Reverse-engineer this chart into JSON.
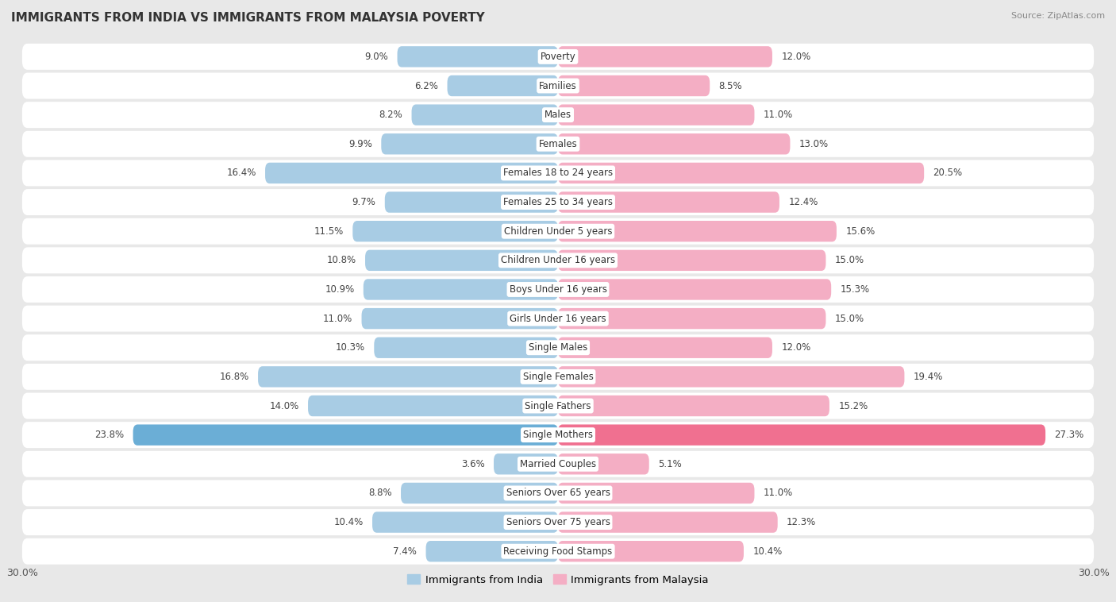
{
  "title": "IMMIGRANTS FROM INDIA VS IMMIGRANTS FROM MALAYSIA POVERTY",
  "source": "Source: ZipAtlas.com",
  "categories": [
    "Poverty",
    "Families",
    "Males",
    "Females",
    "Females 18 to 24 years",
    "Females 25 to 34 years",
    "Children Under 5 years",
    "Children Under 16 years",
    "Boys Under 16 years",
    "Girls Under 16 years",
    "Single Males",
    "Single Females",
    "Single Fathers",
    "Single Mothers",
    "Married Couples",
    "Seniors Over 65 years",
    "Seniors Over 75 years",
    "Receiving Food Stamps"
  ],
  "india_values": [
    9.0,
    6.2,
    8.2,
    9.9,
    16.4,
    9.7,
    11.5,
    10.8,
    10.9,
    11.0,
    10.3,
    16.8,
    14.0,
    23.8,
    3.6,
    8.8,
    10.4,
    7.4
  ],
  "malaysia_values": [
    12.0,
    8.5,
    11.0,
    13.0,
    20.5,
    12.4,
    15.6,
    15.0,
    15.3,
    15.0,
    12.0,
    19.4,
    15.2,
    27.3,
    5.1,
    11.0,
    12.3,
    10.4
  ],
  "india_color": "#a8cce4",
  "malaysia_color": "#f4aec4",
  "india_highlight_color": "#6baed6",
  "malaysia_highlight_color": "#f07090",
  "row_bg_color": "#ffffff",
  "background_color": "#e8e8e8",
  "axis_limit": 30.0,
  "bar_height": 0.72,
  "label_fontsize": 8.5,
  "title_fontsize": 11,
  "legend_fontsize": 9.5
}
